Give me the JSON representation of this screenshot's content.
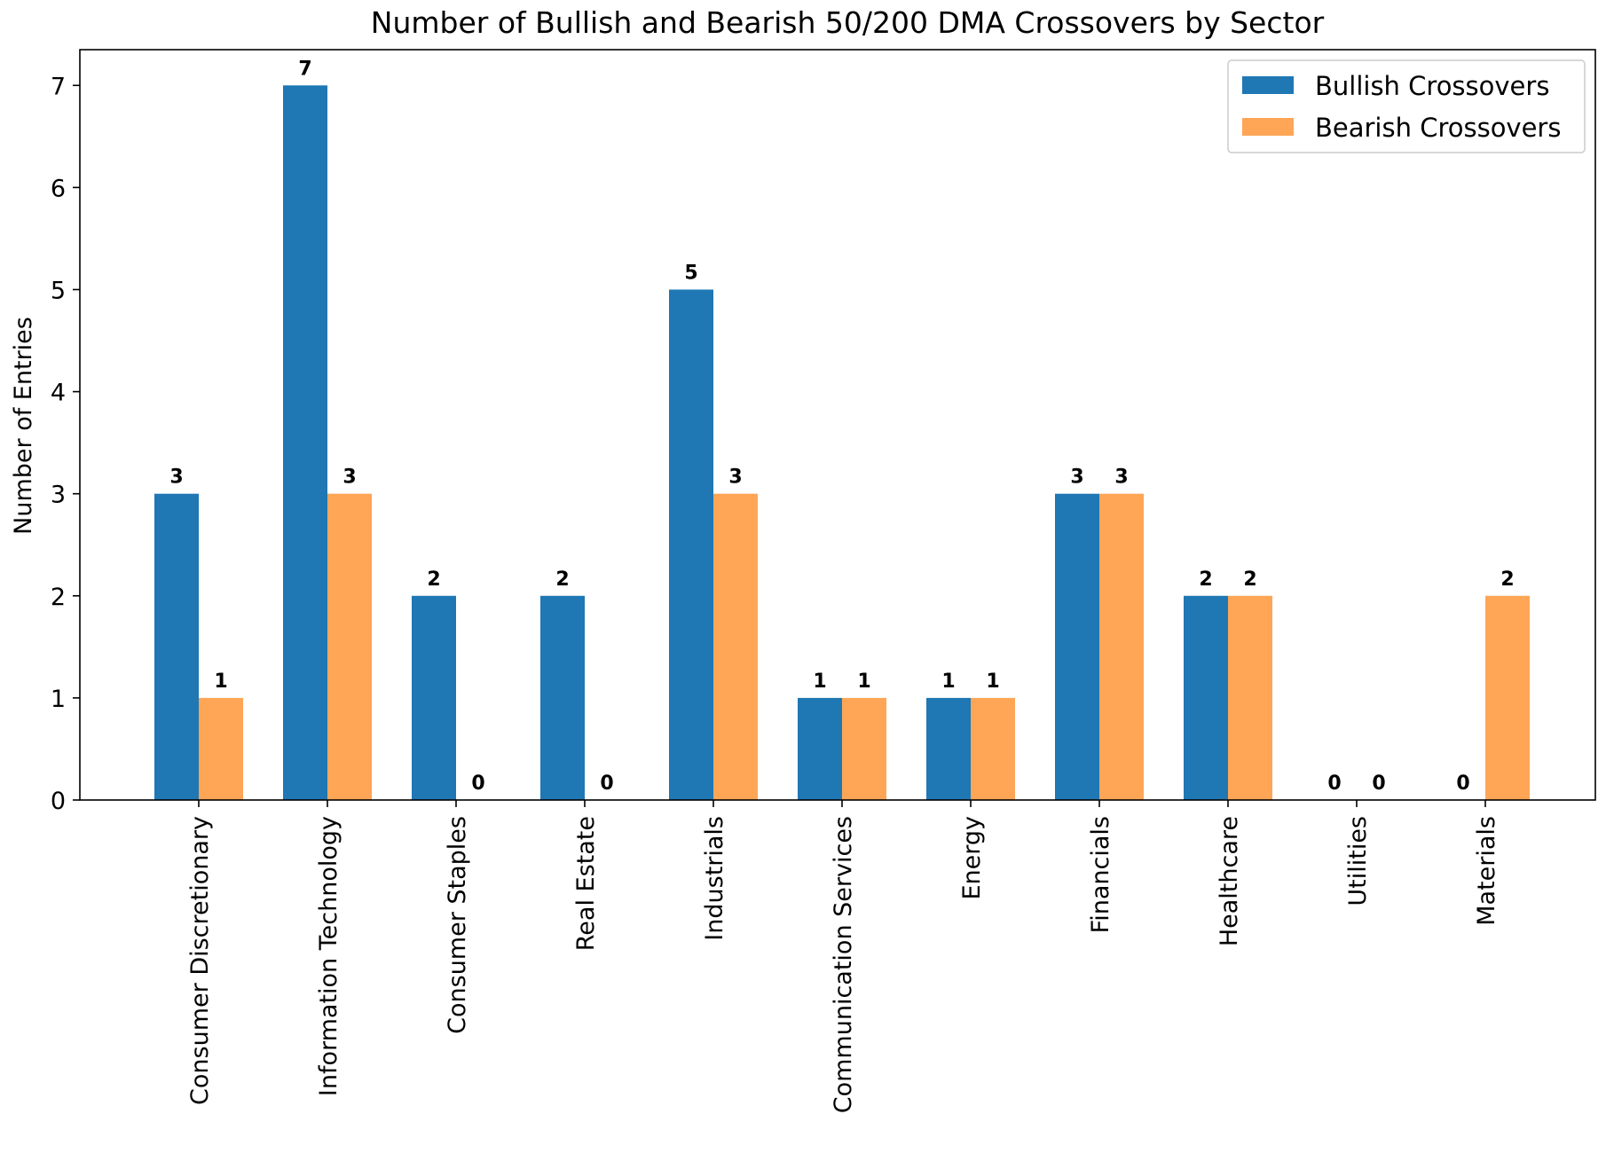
{
  "chart_data": {
    "type": "bar",
    "title": "Number of Bullish and Bearish 50/200 DMA Crossovers by Sector",
    "xlabel": "",
    "ylabel": "Number of Entries",
    "ylim": [
      0,
      7.35
    ],
    "yticks": [
      0,
      1,
      2,
      3,
      4,
      5,
      6,
      7
    ],
    "categories": [
      "Consumer Discretionary",
      "Information Technology",
      "Consumer Staples",
      "Real Estate",
      "Industrials",
      "Communication Services",
      "Energy",
      "Financials",
      "Healthcare",
      "Utilities",
      "Materials"
    ],
    "series": [
      {
        "name": "Bullish Crossovers",
        "color": "#1f77b4",
        "values": [
          3,
          7,
          2,
          2,
          5,
          1,
          1,
          3,
          2,
          0,
          0
        ]
      },
      {
        "name": "Bearish Crossovers",
        "color": "#ffa556",
        "values": [
          1,
          3,
          0,
          0,
          3,
          1,
          1,
          3,
          2,
          0,
          2
        ]
      }
    ],
    "legend_position": "top-right",
    "grid": false
  }
}
